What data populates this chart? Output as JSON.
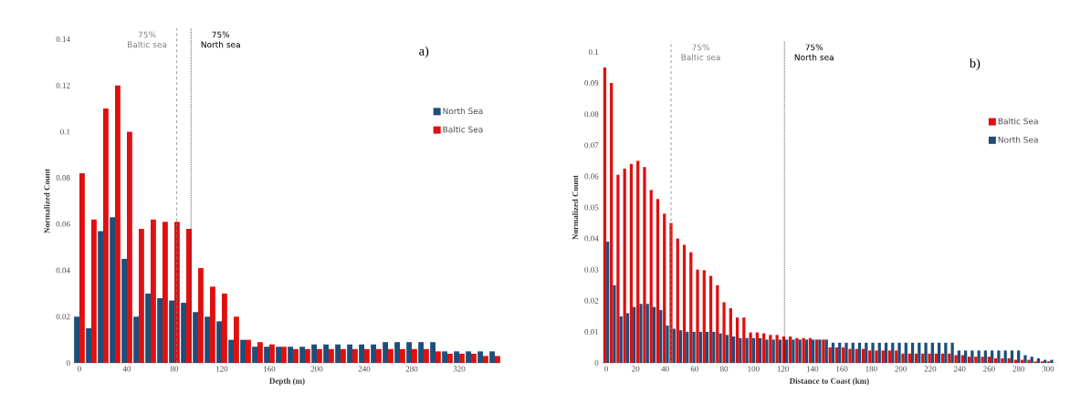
{
  "chart_data": [
    {
      "type": "bar",
      "title": "a)",
      "xlabel": "Depth (m)",
      "ylabel": "Normalized Count",
      "x": [
        0,
        10,
        20,
        30,
        40,
        50,
        60,
        70,
        80,
        90,
        100,
        110,
        120,
        130,
        140,
        150,
        160,
        170,
        180,
        190,
        200,
        210,
        220,
        230,
        240,
        250,
        260,
        270,
        280,
        290,
        300,
        310,
        320,
        330,
        340,
        350
      ],
      "series": [
        {
          "name": "North Sea",
          "color": "#1f4e79",
          "values": [
            0.02,
            0.015,
            0.057,
            0.063,
            0.045,
            0.02,
            0.03,
            0.028,
            0.027,
            0.026,
            0.022,
            0.02,
            0.018,
            0.01,
            0.01,
            0.007,
            0.007,
            0.007,
            0.007,
            0.007,
            0.008,
            0.008,
            0.008,
            0.008,
            0.008,
            0.008,
            0.009,
            0.009,
            0.009,
            0.009,
            0.009,
            0.005,
            0.005,
            0.005,
            0.005,
            0.005
          ]
        },
        {
          "name": "Baltic Sea",
          "color": "#e01010",
          "values": [
            0.082,
            0.062,
            0.11,
            0.12,
            0.1,
            0.058,
            0.062,
            0.061,
            0.061,
            0.058,
            0.041,
            0.033,
            0.03,
            0.02,
            0.01,
            0.009,
            0.008,
            0.007,
            0.006,
            0.006,
            0.006,
            0.006,
            0.006,
            0.006,
            0.006,
            0.006,
            0.006,
            0.006,
            0.006,
            0.006,
            0.005,
            0.004,
            0.004,
            0.004,
            0.003,
            0.003
          ]
        }
      ],
      "xlim": [
        -5,
        355
      ],
      "ylim": [
        0,
        0.14
      ],
      "xticks": [
        0,
        40,
        80,
        120,
        160,
        200,
        240,
        280,
        320
      ],
      "yticks": [
        0,
        0.02,
        0.04,
        0.06,
        0.08,
        0.1,
        0.12,
        0.14
      ],
      "ref_lines": [
        {
          "axis": "x",
          "value": 82,
          "label": "75% Baltic sea",
          "color": "#808080",
          "line_style": "dashed"
        },
        {
          "axis": "x",
          "value": 94,
          "label": "75% North sea",
          "color": "#000000",
          "line_style": "dotted"
        }
      ],
      "legend": "right"
    },
    {
      "type": "bar",
      "title": "b)",
      "xlabel": "Distance to Coast (km)",
      "ylabel": "Normalized Count",
      "x": [
        0,
        4.5,
        9,
        13.5,
        18,
        22.5,
        27,
        31.5,
        36,
        40.5,
        45,
        49.5,
        54,
        58.5,
        63,
        67.5,
        72,
        76.5,
        81,
        85.5,
        90,
        94.5,
        99,
        103.5,
        108,
        112.5,
        117,
        121.5,
        126,
        130.5,
        135,
        139.5,
        144,
        148.5,
        153,
        157.5,
        162,
        166.5,
        171,
        175.5,
        180,
        184.5,
        189,
        193.5,
        198,
        202.5,
        207,
        211.5,
        216,
        220.5,
        225,
        229.5,
        234,
        238.5,
        243,
        247.5,
        252,
        256.5,
        261,
        265.5,
        270,
        274.5,
        279,
        283.5,
        288,
        292.5,
        297,
        301.5
      ],
      "series": [
        {
          "name": "Baltic Sea",
          "color": "#e01010",
          "values": [
            0.095,
            0.09,
            0.0605,
            0.0625,
            0.064,
            0.065,
            0.063,
            0.0556,
            0.0527,
            0.048,
            0.045,
            0.04,
            0.038,
            0.0356,
            0.03,
            0.0298,
            0.028,
            0.025,
            0.0195,
            0.0176,
            0.0146,
            0.0146,
            0.0098,
            0.0098,
            0.0095,
            0.009,
            0.009,
            0.0085,
            0.0085,
            0.008,
            0.008,
            0.008,
            0.0075,
            0.0075,
            0.005,
            0.005,
            0.005,
            0.0045,
            0.0045,
            0.0045,
            0.004,
            0.004,
            0.004,
            0.004,
            0.004,
            0.003,
            0.003,
            0.003,
            0.003,
            0.003,
            0.003,
            0.003,
            0.003,
            0.0025,
            0.0025,
            0.002,
            0.002,
            0.002,
            0.002,
            0.0015,
            0.0015,
            0.0015,
            0.001,
            0.001,
            0.001,
            0.0005,
            0.0005,
            0.0005
          ]
        },
        {
          "name": "North Sea",
          "color": "#1f4e79",
          "values": [
            0.039,
            0.025,
            0.015,
            0.016,
            0.018,
            0.019,
            0.019,
            0.018,
            0.017,
            0.012,
            0.011,
            0.0105,
            0.01,
            0.01,
            0.01,
            0.01,
            0.01,
            0.0095,
            0.009,
            0.0085,
            0.008,
            0.008,
            0.008,
            0.008,
            0.0075,
            0.0075,
            0.0075,
            0.0075,
            0.0075,
            0.0075,
            0.0075,
            0.0075,
            0.0075,
            0.0075,
            0.0065,
            0.0065,
            0.0065,
            0.0065,
            0.0065,
            0.0065,
            0.0065,
            0.0065,
            0.0065,
            0.0065,
            0.0065,
            0.0065,
            0.0065,
            0.0065,
            0.0065,
            0.0065,
            0.0065,
            0.0065,
            0.0065,
            0.004,
            0.004,
            0.004,
            0.004,
            0.004,
            0.004,
            0.004,
            0.004,
            0.004,
            0.004,
            0.0025,
            0.002,
            0.0015,
            0.001,
            0.001
          ]
        }
      ],
      "xlim": [
        -3,
        306
      ],
      "ylim": [
        0,
        0.1
      ],
      "xticks": [
        0,
        20,
        40,
        60,
        80,
        100,
        120,
        140,
        160,
        180,
        200,
        220,
        240,
        260,
        280,
        300
      ],
      "yticks": [
        0,
        0.01,
        0.02,
        0.03,
        0.04,
        0.05,
        0.06,
        0.07,
        0.08,
        0.09,
        0.1
      ],
      "ref_lines": [
        {
          "axis": "x",
          "value": 44,
          "label": "75% Baltic sea",
          "color": "#808080",
          "line_style": "dashed"
        },
        {
          "axis": "x",
          "value": 121,
          "label": "75% North sea",
          "color": "#000000",
          "line_style": "dotted"
        }
      ],
      "legend": "right"
    }
  ]
}
